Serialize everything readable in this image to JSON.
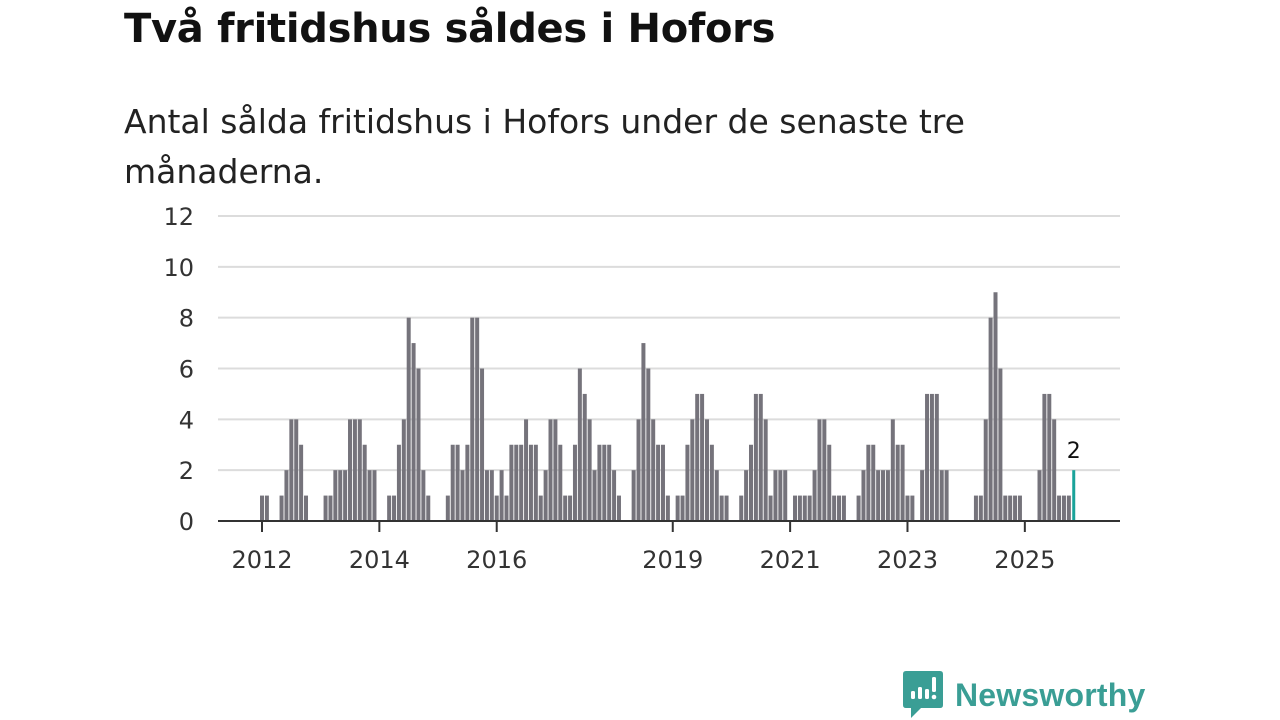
{
  "title": "Två fritidshus såldes i Hofors",
  "subtitle": "Antal sålda fritidshus i Hofors under de senaste tre månaderna.",
  "brand": {
    "name": "Newsworthy",
    "color": "#3a9e95"
  },
  "chart_data": {
    "type": "bar",
    "title": "Två fritidshus såldes i Hofors",
    "xlabel": "",
    "ylabel": "",
    "ylim": [
      0,
      12
    ],
    "yticks": [
      0,
      2,
      4,
      6,
      8,
      10,
      12
    ],
    "grid": true,
    "start_month": "2012-01",
    "xticks": [
      {
        "label": "2012",
        "month_index": 0
      },
      {
        "label": "2014",
        "month_index": 24
      },
      {
        "label": "2016",
        "month_index": 48
      },
      {
        "label": "2019",
        "month_index": 84
      },
      {
        "label": "2021",
        "month_index": 108
      },
      {
        "label": "2023",
        "month_index": 132
      },
      {
        "label": "2025",
        "month_index": 156
      }
    ],
    "values": [
      1,
      1,
      0,
      0,
      1,
      2,
      4,
      4,
      3,
      1,
      0,
      0,
      0,
      1,
      1,
      2,
      2,
      2,
      4,
      4,
      4,
      3,
      2,
      2,
      0,
      0,
      1,
      1,
      3,
      4,
      8,
      7,
      6,
      2,
      1,
      0,
      0,
      0,
      1,
      3,
      3,
      2,
      3,
      8,
      8,
      6,
      2,
      2,
      1,
      2,
      1,
      3,
      3,
      3,
      4,
      3,
      3,
      1,
      2,
      4,
      4,
      3,
      1,
      1,
      3,
      6,
      5,
      4,
      2,
      3,
      3,
      3,
      2,
      1,
      0,
      0,
      2,
      4,
      7,
      6,
      4,
      3,
      3,
      1,
      0,
      1,
      1,
      3,
      4,
      5,
      5,
      4,
      3,
      2,
      1,
      1,
      0,
      0,
      1,
      2,
      3,
      5,
      5,
      4,
      1,
      2,
      2,
      2,
      0,
      1,
      1,
      1,
      1,
      2,
      4,
      4,
      3,
      1,
      1,
      1,
      0,
      0,
      1,
      2,
      3,
      3,
      2,
      2,
      2,
      4,
      3,
      3,
      1,
      1,
      0,
      2,
      5,
      5,
      5,
      2,
      2,
      0,
      0,
      0,
      0,
      0,
      1,
      1,
      4,
      8,
      9,
      6,
      1,
      1,
      1,
      1,
      0,
      0,
      0,
      2,
      5,
      5,
      4,
      1,
      1,
      1,
      2
    ],
    "bar_color": "#75737b",
    "highlight_color": "#1aa39a",
    "annotation": {
      "label": "2",
      "target": "last"
    }
  }
}
